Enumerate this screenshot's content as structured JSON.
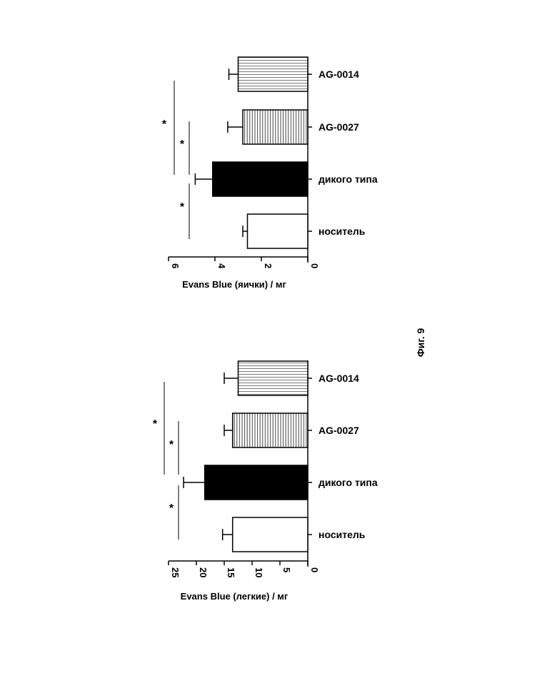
{
  "figure_label": "Фиг. 9",
  "chart_data": [
    {
      "type": "bar",
      "orientation": "horizontal (rotated page)",
      "categories": [
        "AG-0014",
        "AG-0027",
        "дикого типа",
        "носитель"
      ],
      "values": [
        3.0,
        2.8,
        4.1,
        2.6
      ],
      "errors": [
        0.4,
        0.65,
        0.75,
        0.2
      ],
      "fills": [
        "hstripes",
        "vstripes",
        "solid",
        "empty"
      ],
      "xlabel": "Evans Blue (яички) / мг",
      "ticks": [
        "0",
        "2",
        "4",
        "6"
      ],
      "tick_values": [
        0,
        2,
        4,
        6
      ],
      "xlim": [
        0,
        6
      ],
      "significance": [
        {
          "label": "*"
        },
        {
          "label": "*"
        },
        {
          "label": "*"
        }
      ]
    },
    {
      "type": "bar",
      "orientation": "horizontal (rotated page)",
      "categories": [
        "AG-0014",
        "AG-0027",
        "дикого типа",
        "носитель"
      ],
      "values": [
        12.5,
        13.5,
        18.5,
        13.5
      ],
      "errors": [
        2.5,
        1.5,
        3.8,
        1.8
      ],
      "fills": [
        "hstripes",
        "vstripes",
        "solid",
        "empty"
      ],
      "xlabel": "Evans Blue (легкие) / мг",
      "ticks": [
        "0",
        "5",
        "10",
        "15",
        "20",
        "25"
      ],
      "tick_values": [
        0,
        5,
        10,
        15,
        20,
        25
      ],
      "xlim": [
        0,
        25
      ],
      "significance": [
        {
          "label": "*"
        },
        {
          "label": "*"
        },
        {
          "label": "*"
        }
      ]
    }
  ]
}
